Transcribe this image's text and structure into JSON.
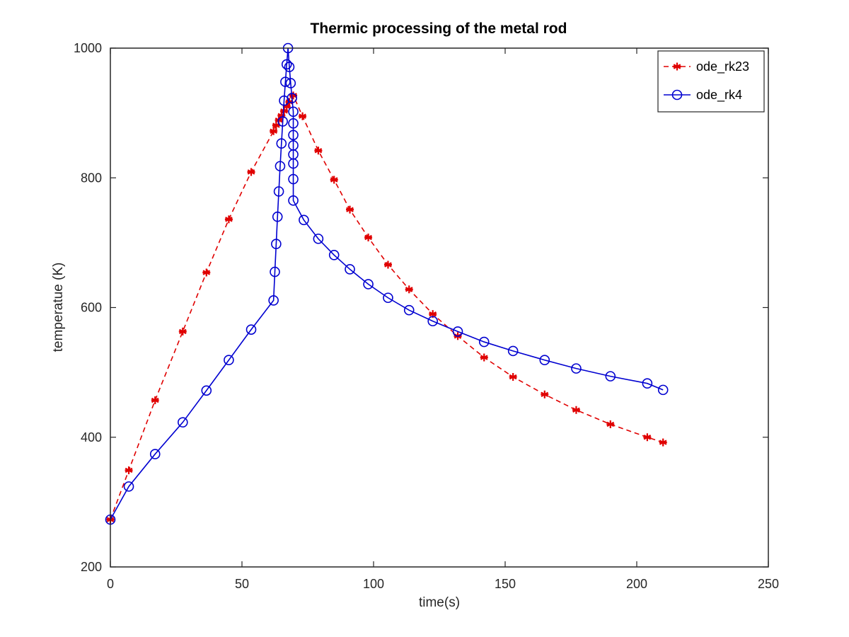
{
  "chart_data": {
    "type": "line",
    "title": "Thermic processing of the metal rod",
    "xlabel": "time(s)",
    "ylabel": "temperatue (K)",
    "xlim": [
      0,
      250
    ],
    "ylim": [
      200,
      1000
    ],
    "xticks": [
      0,
      50,
      100,
      150,
      200,
      250
    ],
    "yticks": [
      200,
      400,
      600,
      800,
      1000
    ],
    "grid": false,
    "legend_position": "top-right",
    "series": [
      {
        "name": "ode_rk23",
        "color": "#e00000",
        "line_style": "dashed",
        "marker": "asterisk",
        "x": [
          0,
          7,
          17,
          27.5,
          36.5,
          45,
          53.5,
          62,
          63,
          64,
          65,
          66,
          67,
          68,
          69.5,
          73,
          79,
          85,
          91,
          98,
          105.5,
          113.5,
          122.5,
          132,
          142,
          153,
          165,
          177,
          190,
          204,
          210
        ],
        "y": [
          273,
          349,
          457,
          563,
          654,
          736,
          809,
          872,
          881,
          889,
          896,
          903,
          910,
          917,
          927,
          895,
          842,
          797,
          751,
          708,
          666,
          628,
          590,
          556,
          523,
          493,
          466,
          442,
          420,
          400,
          392
        ]
      },
      {
        "name": "ode_rk4",
        "color": "#0000d0",
        "line_style": "solid",
        "marker": "circle",
        "x": [
          0,
          7,
          17,
          27.5,
          36.5,
          45,
          53.5,
          62,
          62.5,
          63,
          63.5,
          64,
          64.5,
          65,
          65.5,
          66,
          66.5,
          67,
          67.5,
          68,
          68.5,
          69,
          69.5,
          69.5,
          69.5,
          69.5,
          69.5,
          69.5,
          69.5,
          69.5,
          73.5,
          79,
          85,
          91,
          98,
          105.5,
          113.5,
          122.5,
          132,
          142,
          153,
          165,
          177,
          190,
          204,
          210
        ],
        "y": [
          273,
          324,
          374,
          423,
          472,
          519,
          566,
          611,
          655,
          698,
          740,
          779,
          818,
          853,
          887,
          919,
          948,
          975,
          1000,
          971,
          946,
          923,
          902,
          884,
          866,
          850,
          836,
          822,
          798,
          765,
          735,
          706,
          681,
          659,
          636,
          615,
          596,
          579,
          563,
          547,
          533,
          519,
          506,
          494,
          483,
          473
        ]
      }
    ]
  }
}
